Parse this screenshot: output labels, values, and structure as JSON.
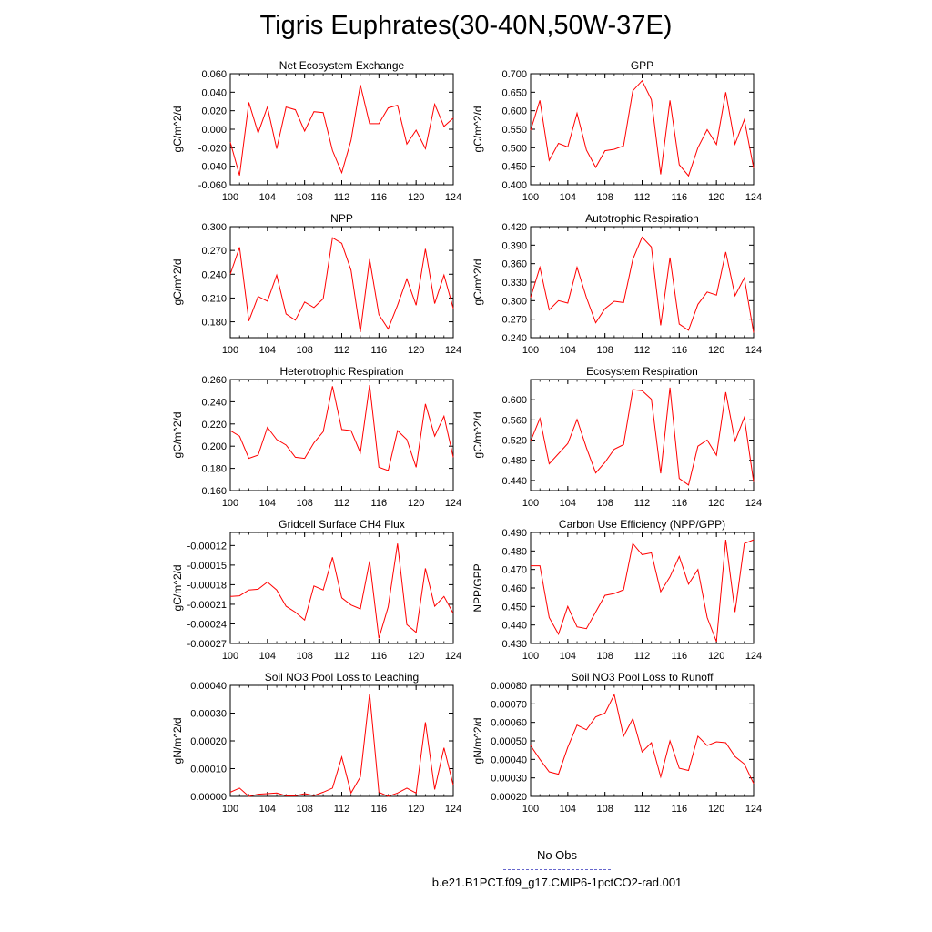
{
  "title": "Tigris Euphrates(30-40N,50W-37E)",
  "legend": {
    "obs_label": "No Obs",
    "run_label": "b.e21.B1PCT.f09_g17.CMIP6-1pctCO2-rad.001",
    "obs_color": "#6666cc",
    "run_color": "#ff0000"
  },
  "chart_data": [
    {
      "type": "line",
      "title": "Net Ecosystem Exchange",
      "ylabel": "gC/m^2/d",
      "xlim": [
        100,
        124
      ],
      "xticks": [
        "100",
        "104",
        "108",
        "112",
        "116",
        "120",
        "124"
      ],
      "ylim": [
        -0.06,
        0.06
      ],
      "yticks": [
        "-0.060",
        "-0.040",
        "-0.020",
        "0.000",
        "0.020",
        "0.040",
        "0.060"
      ],
      "x": [
        100,
        101,
        102,
        103,
        104,
        105,
        106,
        107,
        108,
        109,
        110,
        111,
        112,
        113,
        114,
        115,
        116,
        117,
        118,
        119,
        120,
        121,
        122,
        123,
        124
      ],
      "series": [
        {
          "values": [
            -0.014,
            -0.05,
            0.029,
            -0.004,
            0.024,
            -0.021,
            0.024,
            0.021,
            -0.002,
            0.019,
            0.018,
            -0.023,
            -0.047,
            -0.012,
            0.048,
            0.006,
            0.006,
            0.023,
            0.026,
            -0.016,
            -0.001,
            -0.021,
            0.027,
            0.003,
            0.012
          ]
        }
      ]
    },
    {
      "type": "line",
      "title": "GPP",
      "ylabel": "gC/m^2/d",
      "xlim": [
        100,
        124
      ],
      "xticks": [
        "100",
        "104",
        "108",
        "112",
        "116",
        "120",
        "124"
      ],
      "ylim": [
        0.4,
        0.7
      ],
      "yticks": [
        "0.400",
        "0.450",
        "0.500",
        "0.550",
        "0.600",
        "0.650",
        "0.700"
      ],
      "x": [
        100,
        101,
        102,
        103,
        104,
        105,
        106,
        107,
        108,
        109,
        110,
        111,
        112,
        113,
        114,
        115,
        116,
        117,
        118,
        119,
        120,
        121,
        122,
        123,
        124
      ],
      "series": [
        {
          "values": [
            0.547,
            0.628,
            0.466,
            0.512,
            0.502,
            0.593,
            0.494,
            0.447,
            0.492,
            0.496,
            0.505,
            0.654,
            0.681,
            0.63,
            0.428,
            0.628,
            0.454,
            0.424,
            0.5,
            0.549,
            0.509,
            0.65,
            0.51,
            0.576,
            0.445
          ]
        }
      ]
    },
    {
      "type": "line",
      "title": "NPP",
      "ylabel": "gC/m^2/d",
      "xlim": [
        100,
        124
      ],
      "xticks": [
        "100",
        "104",
        "108",
        "112",
        "116",
        "120",
        "124"
      ],
      "ylim": [
        0.16,
        0.3
      ],
      "yticks": [
        "0.180",
        "0.210",
        "0.240",
        "0.270",
        "0.300"
      ],
      "x": [
        100,
        101,
        102,
        103,
        104,
        105,
        106,
        107,
        108,
        109,
        110,
        111,
        112,
        113,
        114,
        115,
        116,
        117,
        118,
        119,
        120,
        121,
        122,
        123,
        124
      ],
      "series": [
        {
          "values": [
            0.24,
            0.274,
            0.181,
            0.212,
            0.206,
            0.239,
            0.19,
            0.182,
            0.205,
            0.198,
            0.209,
            0.286,
            0.279,
            0.245,
            0.167,
            0.259,
            0.189,
            0.171,
            0.201,
            0.234,
            0.201,
            0.272,
            0.203,
            0.239,
            0.197
          ]
        }
      ]
    },
    {
      "type": "line",
      "title": "Autotrophic Respiration",
      "ylabel": "gC/m^2/d",
      "xlim": [
        100,
        124
      ],
      "xticks": [
        "100",
        "104",
        "108",
        "112",
        "116",
        "120",
        "124"
      ],
      "ylim": [
        0.24,
        0.42
      ],
      "yticks": [
        "0.240",
        "0.270",
        "0.300",
        "0.330",
        "0.360",
        "0.390",
        "0.420"
      ],
      "x": [
        100,
        101,
        102,
        103,
        104,
        105,
        106,
        107,
        108,
        109,
        110,
        111,
        112,
        113,
        114,
        115,
        116,
        117,
        118,
        119,
        120,
        121,
        122,
        123,
        124
      ],
      "series": [
        {
          "values": [
            0.305,
            0.354,
            0.285,
            0.3,
            0.296,
            0.354,
            0.305,
            0.264,
            0.287,
            0.299,
            0.297,
            0.367,
            0.403,
            0.387,
            0.26,
            0.37,
            0.262,
            0.252,
            0.294,
            0.314,
            0.309,
            0.379,
            0.308,
            0.337,
            0.248
          ]
        }
      ]
    },
    {
      "type": "line",
      "title": "Heterotrophic Respiration",
      "ylabel": "gC/m^2/d",
      "xlim": [
        100,
        124
      ],
      "xticks": [
        "100",
        "104",
        "108",
        "112",
        "116",
        "120",
        "124"
      ],
      "ylim": [
        0.16,
        0.26
      ],
      "yticks": [
        "0.160",
        "0.180",
        "0.200",
        "0.220",
        "0.240",
        "0.260"
      ],
      "x": [
        100,
        101,
        102,
        103,
        104,
        105,
        106,
        107,
        108,
        109,
        110,
        111,
        112,
        113,
        114,
        115,
        116,
        117,
        118,
        119,
        120,
        121,
        122,
        123,
        124
      ],
      "series": [
        {
          "values": [
            0.214,
            0.209,
            0.189,
            0.192,
            0.217,
            0.206,
            0.201,
            0.19,
            0.189,
            0.203,
            0.213,
            0.254,
            0.215,
            0.214,
            0.194,
            0.255,
            0.181,
            0.178,
            0.214,
            0.206,
            0.181,
            0.238,
            0.209,
            0.227,
            0.19
          ]
        }
      ]
    },
    {
      "type": "line",
      "title": "Ecosystem Respiration",
      "ylabel": "gC/m^2/d",
      "xlim": [
        100,
        124
      ],
      "xticks": [
        "100",
        "104",
        "108",
        "112",
        "116",
        "120",
        "124"
      ],
      "ylim": [
        0.42,
        0.64
      ],
      "yticks": [
        "0.440",
        "0.480",
        "0.520",
        "0.560",
        "0.600"
      ],
      "x": [
        100,
        101,
        102,
        103,
        104,
        105,
        106,
        107,
        108,
        109,
        110,
        111,
        112,
        113,
        114,
        115,
        116,
        117,
        118,
        119,
        120,
        121,
        122,
        123,
        124
      ],
      "series": [
        {
          "values": [
            0.518,
            0.563,
            0.473,
            0.493,
            0.513,
            0.561,
            0.505,
            0.455,
            0.476,
            0.502,
            0.511,
            0.62,
            0.618,
            0.601,
            0.454,
            0.624,
            0.444,
            0.431,
            0.508,
            0.52,
            0.49,
            0.615,
            0.518,
            0.565,
            0.437
          ]
        }
      ]
    },
    {
      "type": "line",
      "title": "Gridcell Surface CH4 Flux",
      "ylabel": "gC/m^2/d",
      "xlim": [
        100,
        124
      ],
      "xticks": [
        "100",
        "104",
        "108",
        "112",
        "116",
        "120",
        "124"
      ],
      "ylim": [
        -0.00027,
        -0.0001
      ],
      "yticks": [
        "-0.00027",
        "-0.00024",
        "-0.00021",
        "-0.00018",
        "-0.00015",
        "-0.00012"
      ],
      "x": [
        100,
        101,
        102,
        103,
        104,
        105,
        106,
        107,
        108,
        109,
        110,
        111,
        112,
        113,
        114,
        115,
        116,
        117,
        118,
        119,
        120,
        121,
        122,
        123,
        124
      ],
      "series": [
        {
          "values": [
            -0.000198,
            -0.000197,
            -0.000188,
            -0.000187,
            -0.000176,
            -0.000188,
            -0.000213,
            -0.000222,
            -0.000234,
            -0.000182,
            -0.000188,
            -0.000138,
            -0.0002,
            -0.000211,
            -0.000217,
            -0.000144,
            -0.000262,
            -0.000214,
            -0.000117,
            -0.000241,
            -0.000253,
            -0.000155,
            -0.000213,
            -0.000198,
            -0.000224
          ]
        }
      ]
    },
    {
      "type": "line",
      "title": "Carbon Use Efficiency (NPP/GPP)",
      "ylabel": "NPP/GPP",
      "xlim": [
        100,
        124
      ],
      "xticks": [
        "100",
        "104",
        "108",
        "112",
        "116",
        "120",
        "124"
      ],
      "ylim": [
        0.43,
        0.49
      ],
      "yticks": [
        "0.430",
        "0.440",
        "0.450",
        "0.460",
        "0.470",
        "0.480",
        "0.490"
      ],
      "x": [
        100,
        101,
        102,
        103,
        104,
        105,
        106,
        107,
        108,
        109,
        110,
        111,
        112,
        113,
        114,
        115,
        116,
        117,
        118,
        119,
        120,
        121,
        122,
        123,
        124
      ],
      "series": [
        {
          "values": [
            0.472,
            0.472,
            0.444,
            0.435,
            0.45,
            0.439,
            0.438,
            0.447,
            0.456,
            0.457,
            0.459,
            0.484,
            0.478,
            0.479,
            0.458,
            0.466,
            0.477,
            0.462,
            0.47,
            0.444,
            0.431,
            0.486,
            0.447,
            0.484,
            0.486
          ]
        }
      ]
    },
    {
      "type": "line",
      "title": "Soil NO3 Pool Loss to Leaching",
      "ylabel": "gN/m^2/d",
      "xlim": [
        100,
        124
      ],
      "xticks": [
        "100",
        "104",
        "108",
        "112",
        "116",
        "120",
        "124"
      ],
      "ylim": [
        0,
        0.0004
      ],
      "yticks": [
        "0.00000",
        "0.00010",
        "0.00020",
        "0.00030",
        "0.00040"
      ],
      "x": [
        100,
        101,
        102,
        103,
        104,
        105,
        106,
        107,
        108,
        109,
        110,
        111,
        112,
        113,
        114,
        115,
        116,
        117,
        118,
        119,
        120,
        121,
        122,
        123,
        124
      ],
      "series": [
        {
          "values": [
            1.5e-05,
            3e-05,
            0.0,
            8e-06,
            1e-05,
            1.2e-05,
            2e-06,
            2e-06,
            1e-05,
            3e-06,
            1.5e-05,
            3e-05,
            0.000142,
            1.2e-05,
            7e-05,
            0.00037,
            1.5e-05,
            0.0,
            1.2e-05,
            3e-05,
            1.2e-05,
            0.000267,
            2.5e-05,
            0.000175,
            4e-05
          ]
        }
      ]
    },
    {
      "type": "line",
      "title": "Soil NO3 Pool Loss to Runoff",
      "ylabel": "gN/m^2/d",
      "xlim": [
        100,
        124
      ],
      "xticks": [
        "100",
        "104",
        "108",
        "112",
        "116",
        "120",
        "124"
      ],
      "ylim": [
        0.0002,
        0.0008
      ],
      "yticks": [
        "0.00020",
        "0.00030",
        "0.00040",
        "0.00050",
        "0.00060",
        "0.00070",
        "0.00080"
      ],
      "x": [
        100,
        101,
        102,
        103,
        104,
        105,
        106,
        107,
        108,
        109,
        110,
        111,
        112,
        113,
        114,
        115,
        116,
        117,
        118,
        119,
        120,
        121,
        122,
        123,
        124
      ],
      "series": [
        {
          "values": [
            0.000475,
            0.0004,
            0.000333,
            0.00032,
            0.000465,
            0.000585,
            0.00056,
            0.00063,
            0.00065,
            0.00075,
            0.000525,
            0.00062,
            0.00044,
            0.00049,
            0.000305,
            0.0005,
            0.000352,
            0.00034,
            0.000525,
            0.000475,
            0.000495,
            0.00049,
            0.000415,
            0.000375,
            0.00027
          ]
        }
      ]
    }
  ]
}
